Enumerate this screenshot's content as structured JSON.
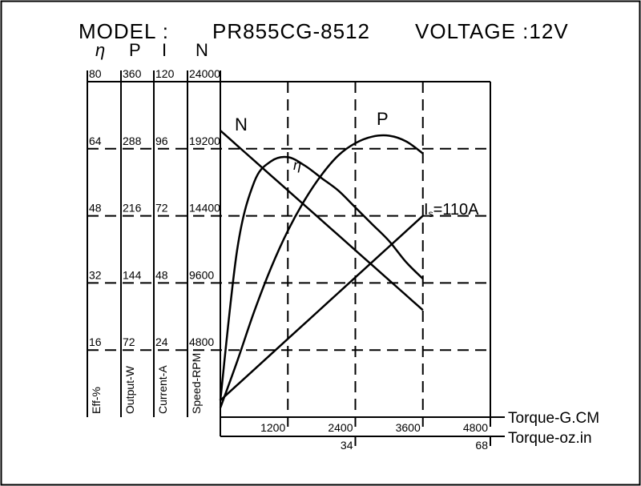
{
  "chart_data": {
    "type": "line",
    "title_model_label": "MODEL :",
    "title_model": "PR855CG-8512",
    "title_voltage": "VOLTAGE :12V",
    "x": [
      0,
      300,
      600,
      900,
      1200,
      1500,
      1800,
      2100,
      2400,
      2700,
      3000,
      3300,
      3600
    ],
    "xlim": [
      0,
      4800
    ],
    "xticks": [
      1200,
      2400,
      3600,
      4800
    ],
    "xlabel": "Torque-G.CM",
    "x2lim": [
      0,
      68
    ],
    "x2ticks": [
      34,
      68
    ],
    "x2label": "Torque-oz.in",
    "grid": true,
    "yaxes": [
      {
        "symbol": "η",
        "label": "Eff-%",
        "lim": [
          0,
          80
        ],
        "ticks": [
          16,
          32,
          48,
          64,
          80
        ]
      },
      {
        "symbol": "P",
        "label": "Output-W",
        "lim": [
          0,
          360
        ],
        "ticks": [
          72,
          144,
          216,
          288,
          360
        ]
      },
      {
        "symbol": "I",
        "label": "Current-A",
        "lim": [
          0,
          120
        ],
        "ticks": [
          24,
          48,
          72,
          96,
          120
        ]
      },
      {
        "symbol": "N",
        "label": "Speed-RPM",
        "lim": [
          0,
          24000
        ],
        "ticks": [
          4800,
          9600,
          14400,
          19200,
          24000
        ]
      }
    ],
    "series": [
      {
        "name": "N",
        "axis": 3,
        "color": "#000000",
        "values": [
          20500,
          19430,
          18360,
          17290,
          16220,
          15150,
          14080,
          13010,
          11940,
          10870,
          9800,
          8730,
          7660
        ]
      },
      {
        "name": "P",
        "axis": 1,
        "color": "#000000",
        "values": [
          10,
          60,
          113,
          160,
          200,
          233,
          260,
          281,
          294,
          301,
          302,
          296,
          283
        ]
      },
      {
        "name": "η",
        "axis": 0,
        "color": "#000000",
        "values": [
          4,
          40,
          56,
          61,
          62,
          60,
          57,
          54,
          50,
          46,
          42,
          37,
          33
        ]
      },
      {
        "name": "I",
        "axis": 2,
        "color": "#000000",
        "values": [
          6,
          11.5,
          17,
          22.5,
          28,
          33.5,
          39,
          44.5,
          50,
          55.5,
          61,
          66.5,
          72
        ]
      }
    ],
    "stall_label": [
      "I",
      "s",
      "=110A"
    ]
  }
}
